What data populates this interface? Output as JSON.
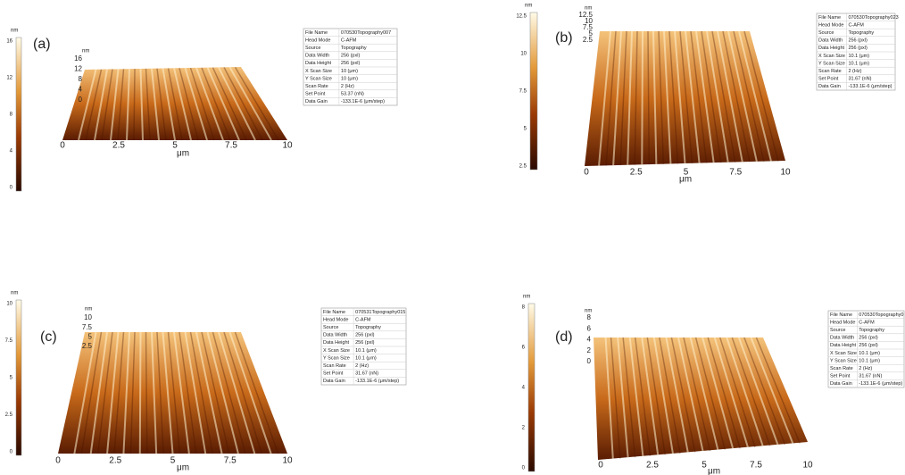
{
  "panels": [
    {
      "label": "(a)",
      "colorbar": {
        "unit": "nm",
        "ticks": [
          16,
          12,
          8,
          4,
          0
        ]
      },
      "z_axis": {
        "unit": "nm",
        "ticks": [
          16,
          12,
          8,
          4,
          0
        ]
      },
      "x_axis": {
        "unit": "μm",
        "ticks": [
          0,
          2.5,
          5,
          7.5,
          10
        ]
      },
      "info": [
        [
          "File Name",
          "070530Topography007"
        ],
        [
          "Head Mode",
          "C-AFM"
        ],
        [
          "Source",
          "Topography"
        ],
        [
          "Data Width",
          "256 (pxl)"
        ],
        [
          "Data Height",
          "256 (pxl)"
        ],
        [
          "X Scan Size",
          "10 (μm)"
        ],
        [
          "Y Scan Size",
          "10 (μm)"
        ],
        [
          "Scan Rate",
          "2 (Hz)"
        ],
        [
          "Set Point",
          "53.37 (nN)"
        ],
        [
          "Data Gain",
          "-133.1E-6 (μm/step)"
        ]
      ]
    },
    {
      "label": "(b)",
      "colorbar": {
        "unit": "nm",
        "ticks": [
          12.5,
          10,
          7.5,
          5,
          2.5
        ]
      },
      "z_axis": {
        "unit": "nm",
        "ticks": [
          12.5,
          10,
          7.5,
          5,
          2.5
        ]
      },
      "x_axis": {
        "unit": "μm",
        "ticks": [
          0,
          2.5,
          5,
          7.5,
          10
        ]
      },
      "info": [
        [
          "File Name",
          "070530Topography023"
        ],
        [
          "Head Mode",
          "C-AFM"
        ],
        [
          "Source",
          "Topography"
        ],
        [
          "Data Width",
          "256 (pxl)"
        ],
        [
          "Data Height",
          "256 (pxl)"
        ],
        [
          "X Scan Size",
          "10.1 (μm)"
        ],
        [
          "Y Scan Size",
          "10.1 (μm)"
        ],
        [
          "Scan Rate",
          "2 (Hz)"
        ],
        [
          "Set Point",
          "31.67 (nN)"
        ],
        [
          "Data Gain",
          "-133.1E-6 (μm/step)"
        ]
      ]
    },
    {
      "label": "(c)",
      "colorbar": {
        "unit": "nm",
        "ticks": [
          10,
          7.5,
          5,
          2.5,
          0
        ]
      },
      "z_axis": {
        "unit": "nm",
        "ticks": [
          10,
          7.5,
          5,
          2.5
        ]
      },
      "x_axis": {
        "unit": "μm",
        "ticks": [
          0,
          2.5,
          5,
          7.5,
          10
        ]
      },
      "info": [
        [
          "File Name",
          "070531Topography015"
        ],
        [
          "Head Mode",
          "C-AFM"
        ],
        [
          "Source",
          "Topography"
        ],
        [
          "Data Width",
          "256 (pxl)"
        ],
        [
          "Data Height",
          "256 (pxl)"
        ],
        [
          "X Scan Size",
          "10.1 (μm)"
        ],
        [
          "Y Scan Size",
          "10.1 (μm)"
        ],
        [
          "Scan Rate",
          "2 (Hz)"
        ],
        [
          "Set Point",
          "31.67 (nN)"
        ],
        [
          "Data Gain",
          "-133.1E-6 (μm/step)"
        ]
      ]
    },
    {
      "label": "(d)",
      "colorbar": {
        "unit": "nm",
        "ticks": [
          8,
          6,
          4,
          2,
          0
        ]
      },
      "z_axis": {
        "unit": "nm",
        "ticks": [
          8,
          6,
          4,
          2,
          0
        ]
      },
      "x_axis": {
        "unit": "μm",
        "ticks": [
          0,
          2.5,
          5,
          7.5,
          10
        ]
      },
      "info": [
        [
          "File Name",
          "070530Topography0"
        ],
        [
          "Head Mode",
          "C-AFM"
        ],
        [
          "Source",
          "Topography"
        ],
        [
          "Data Width",
          "256 (pxl)"
        ],
        [
          "Data Height",
          "256 (pxl)"
        ],
        [
          "X Scan Size",
          "10.1 (μm)"
        ],
        [
          "Y Scan Size",
          "10.1 (μm)"
        ],
        [
          "Scan Rate",
          "2 (Hz)"
        ],
        [
          "Set Point",
          "31.67 (nN)"
        ],
        [
          "Data Gain",
          "-133.1E-6 (μm/step)"
        ]
      ]
    }
  ]
}
